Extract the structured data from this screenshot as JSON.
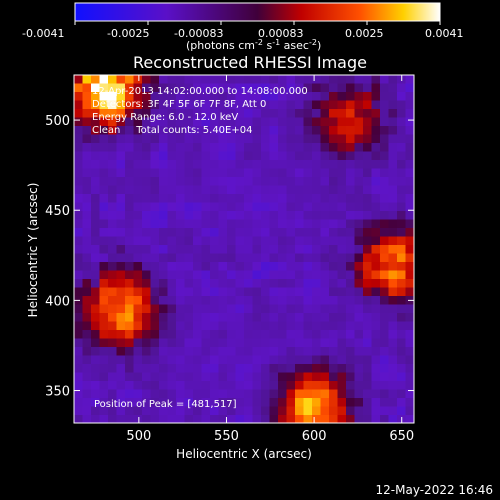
{
  "colorbar": {
    "ticks": [
      "-0.0041",
      "-0.0025",
      "-0.00083",
      "0.00083",
      "0.0025",
      "0.0041"
    ],
    "unit_main": "(photons cm",
    "unit_exp1": "-2",
    "unit_mid1": " s",
    "unit_exp2": "-1",
    "unit_mid2": " asec",
    "unit_exp3": "-2",
    "unit_end": ")"
  },
  "chart_data": {
    "type": "heatmap",
    "title": "Reconstructed RHESSI Image",
    "xlabel": "Heliocentric X (arcsec)",
    "ylabel": "Heliocentric Y (arcsec)",
    "xlim": [
      463,
      657
    ],
    "ylim": [
      332,
      525
    ],
    "x_ticks": [
      500,
      550,
      600,
      650
    ],
    "y_ticks": [
      350,
      400,
      450,
      500
    ],
    "value_range": [
      -0.0041,
      0.0041
    ],
    "colormap": "rainbow/heat (blue-purple-red-orange-yellow-white)",
    "hotspots": [
      {
        "x": 481,
        "y": 517,
        "strength": 1.0
      },
      {
        "x": 490,
        "y": 395,
        "strength": 0.75
      },
      {
        "x": 600,
        "y": 340,
        "strength": 0.8
      },
      {
        "x": 645,
        "y": 420,
        "strength": 0.7
      },
      {
        "x": 620,
        "y": 500,
        "strength": 0.5
      }
    ],
    "annotations": [
      "12-Apr-2013 14:02:00.000 to 14:08:00.000",
      "Detectors: 3F 4F 5F 6F 7F 8F, Att 0",
      "Energy Range: 6.0 - 12.0 keV",
      "Clean     Total counts: 5.40E+04",
      "Position of Peak = [481,517]"
    ]
  },
  "timestamp": "12-May-2022 16:46"
}
